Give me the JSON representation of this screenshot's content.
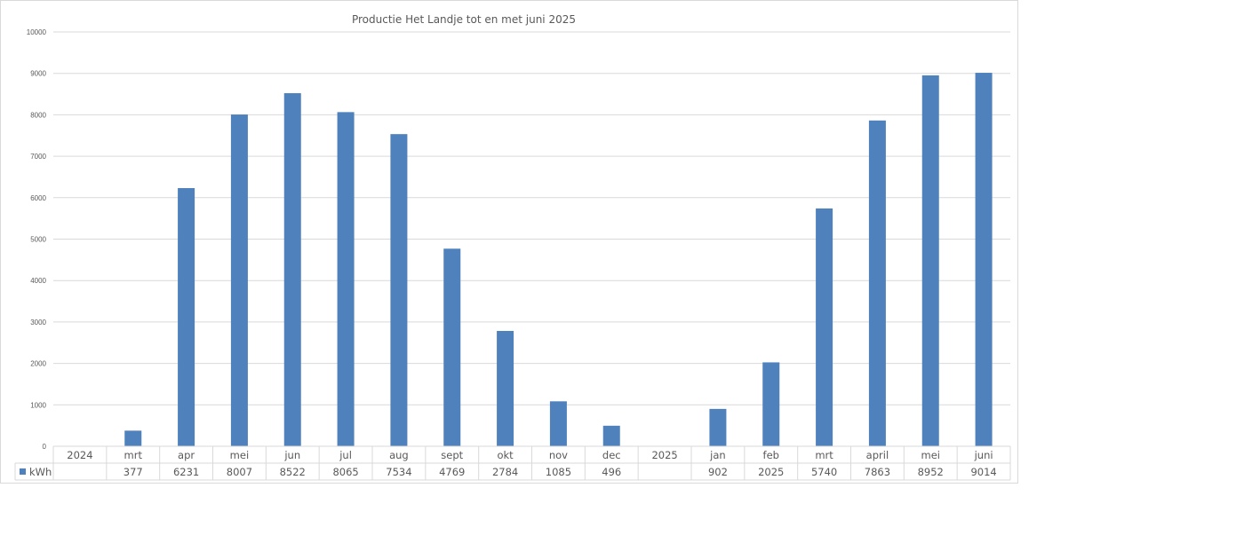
{
  "chart_data": {
    "type": "bar",
    "title": "Productie Het Landje tot en met juni 2025",
    "categories": [
      "2024",
      "mrt",
      "apr",
      "mei",
      "jun",
      "jul",
      "aug",
      "sept",
      "okt",
      "nov",
      "dec",
      "2025",
      "jan",
      "feb",
      "mrt",
      "april",
      "mei",
      "juni"
    ],
    "series": [
      {
        "name": "kWh",
        "color": "#4f81bd",
        "values": [
          null,
          377,
          6231,
          8007,
          8522,
          8065,
          7534,
          4769,
          2784,
          1085,
          496,
          null,
          902,
          2025,
          5740,
          7863,
          8952,
          9014
        ]
      }
    ],
    "ylim": [
      0,
      10000
    ],
    "yticks": [
      "0",
      "1000",
      "2000",
      "3000",
      "4000",
      "5000",
      "6000",
      "7000",
      "8000",
      "9000",
      "10000"
    ],
    "grid": true,
    "legend": "data-table"
  }
}
